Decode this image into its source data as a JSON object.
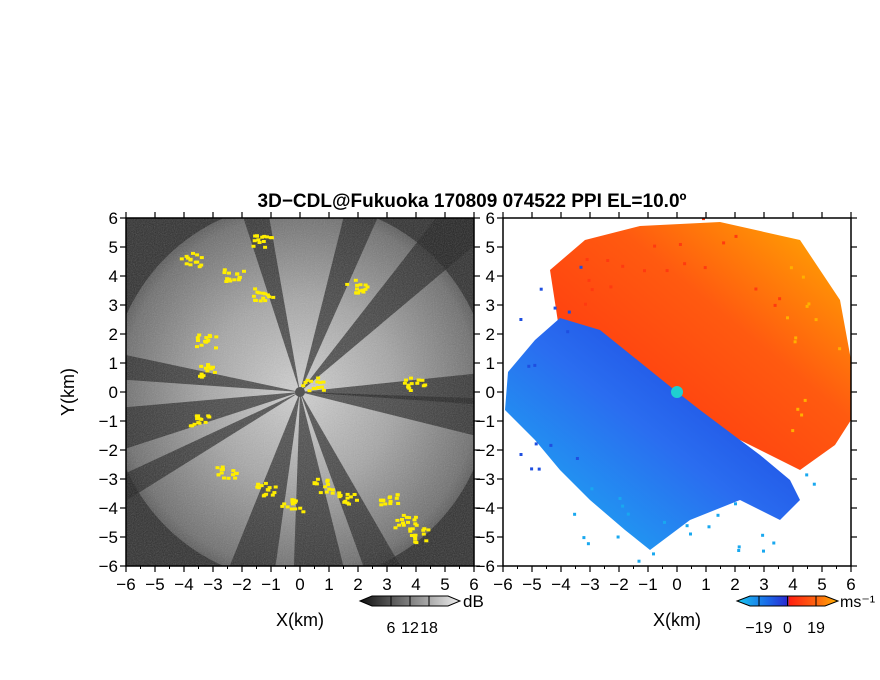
{
  "chart_data": [
    {
      "type": "heatmap",
      "panel": "left",
      "title": "3D−CDL@Fukuoka 170809 074522 PPI EL=10.0º",
      "xlabel": "X(km)",
      "ylabel": "Y(km)",
      "xlim": [
        -6,
        6
      ],
      "ylim": [
        -6,
        6
      ],
      "xticks": [
        "−6",
        "−5",
        "−4",
        "−3",
        "−2",
        "−1",
        "0",
        "1",
        "2",
        "3",
        "4",
        "5",
        "6"
      ],
      "yticks": [
        "−6",
        "−5",
        "−4",
        "−3",
        "−2",
        "−1",
        "0",
        "1",
        "2",
        "3",
        "4",
        "5",
        "6"
      ],
      "colorbar": {
        "unit": "dB",
        "ticks": [
          "6",
          "12",
          "18"
        ],
        "values": [
          6,
          12,
          18
        ]
      },
      "highlight_color": "#ffee00",
      "highlight_clusters": [
        {
          "x": -3.3,
          "y": 1.8
        },
        {
          "x": -3.2,
          "y": 0.8
        },
        {
          "x": -3.8,
          "y": 4.6
        },
        {
          "x": -2.3,
          "y": 4.1
        },
        {
          "x": -1.3,
          "y": 5.2
        },
        {
          "x": -1.3,
          "y": 3.4
        },
        {
          "x": 1.9,
          "y": 3.7
        },
        {
          "x": 3.9,
          "y": 0.3
        },
        {
          "x": -3.5,
          "y": -1.0
        },
        {
          "x": -2.6,
          "y": -2.7
        },
        {
          "x": -1.2,
          "y": -3.3
        },
        {
          "x": -0.3,
          "y": -3.9
        },
        {
          "x": 0.8,
          "y": -3.2
        },
        {
          "x": 1.6,
          "y": -3.6
        },
        {
          "x": 3.1,
          "y": -3.7
        },
        {
          "x": 3.6,
          "y": -4.4
        },
        {
          "x": 4.1,
          "y": -4.9
        },
        {
          "x": 0.4,
          "y": 0.3
        }
      ]
    },
    {
      "type": "heatmap",
      "panel": "right",
      "xlabel": "X(km)",
      "xlim": [
        -6,
        6
      ],
      "ylim": [
        -6,
        6
      ],
      "xticks": [
        "−6",
        "−5",
        "−4",
        "−3",
        "−2",
        "−1",
        "0",
        "1",
        "2",
        "3",
        "4",
        "5",
        "6"
      ],
      "yticks": [
        "−6",
        "−5",
        "−4",
        "−3",
        "−2",
        "−1",
        "0",
        "1",
        "2",
        "3",
        "4",
        "5",
        "6"
      ],
      "colorbar": {
        "unit": "ms⁻¹",
        "ticks": [
          "−19",
          "0",
          "19"
        ],
        "values": [
          -19,
          0,
          19
        ]
      },
      "colors": {
        "approach": "#1f4fe0",
        "approach_far": "#19a8ef",
        "recede": "#ff3a10",
        "recede_far": "#ffb000",
        "radar": "#1fd0d0"
      }
    }
  ]
}
